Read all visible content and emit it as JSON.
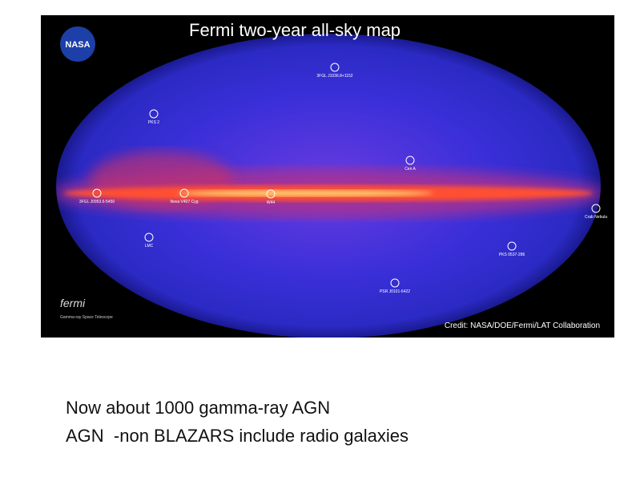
{
  "image": {
    "title": "Fermi two-year all-sky map",
    "logo": "NASA",
    "credit": "Credit: NASA/DOE/Fermi/LAT Collaboration",
    "fermi_logo": "fermi",
    "fermi_caption": "Gamma-ray Space Telescope",
    "sources": [
      {
        "label": "3FGL J1036.8+1152"
      },
      {
        "label": "PKS 2"
      },
      {
        "label": "Cen A"
      },
      {
        "label": "3FGL J0953.6-5450"
      },
      {
        "label": "Nova V407 Cyg"
      },
      {
        "label": "W44"
      },
      {
        "label": "Crab Nebula"
      },
      {
        "label": "LMC"
      },
      {
        "label": "PKS 0537-286"
      },
      {
        "label": "PSR J0101-6422"
      }
    ]
  },
  "text": {
    "lines": [
      "Now about 1000 gamma-ray AGN",
      "AGN  -non BLAZARS include radio galaxies"
    ]
  }
}
